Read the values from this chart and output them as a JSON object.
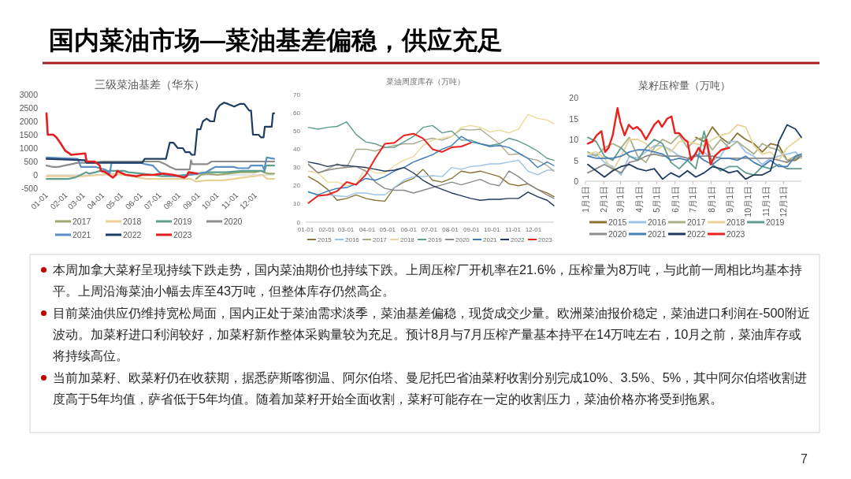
{
  "chart_data": [
    {
      "type": "other",
      "title": "国内菜油市场—菜油基差偏稳，供应充足",
      "annotations": [
        "7"
      ]
    },
    {
      "type": "line",
      "title": "三级菜油基差（华东）",
      "legend": "bottom",
      "xlim": [
        "--01-01",
        "--12-31"
      ],
      "xticks": [
        {
          "value": "--01-01",
          "label": "01-01"
        },
        {
          "value": "--02-01",
          "label": "02-01"
        },
        {
          "value": "--03-01",
          "label": "03-01"
        },
        {
          "value": "--04-01",
          "label": "04-01"
        },
        {
          "value": "--05-01",
          "label": "05-01"
        },
        {
          "value": "--06-01",
          "label": "06-01"
        },
        {
          "value": "--07-01",
          "label": "07-01"
        },
        {
          "value": "--08-01",
          "label": "08-01"
        },
        {
          "value": "--09-01",
          "label": "09-01"
        },
        {
          "value": "--10-01",
          "label": "10-01"
        },
        {
          "value": "--11-01",
          "label": "11-01"
        },
        {
          "value": "--12-01",
          "label": "12-01"
        }
      ],
      "ylim": [
        -500,
        3000
      ],
      "yticks": [
        -500,
        0,
        500,
        1000,
        1500,
        2000,
        2500,
        3000
      ],
      "series": [
        {
          "name": "2017",
          "color": "#9aaa6c",
          "x": [
            "--08-28",
            "--09-05",
            "--09-15",
            "--10-01",
            "--10-18",
            "--11-06",
            "--11-30",
            "--12-10",
            "--12-20",
            "--12-31"
          ],
          "values": [
            -150,
            0,
            50,
            0,
            50,
            100,
            100,
            150,
            50,
            50
          ]
        },
        {
          "name": "2018",
          "color": "#e8cf96",
          "x": [
            "--01-01",
            "--03-01",
            "--03-28",
            "--04-08",
            "--05-08",
            "--05-28",
            "--06-10",
            "--08-20",
            "--08-28",
            "--09-15",
            "--10-10",
            "--10-28",
            "--11-10",
            "--11-30",
            "--12-12",
            "--12-20",
            "--12-31"
          ],
          "values": [
            -50,
            -50,
            0,
            50,
            0,
            -100,
            -150,
            -150,
            -250,
            -200,
            -200,
            -150,
            -100,
            -50,
            0,
            -150,
            -150
          ]
        },
        {
          "name": "2019",
          "color": "#5f9f8e",
          "x": [
            "--01-01",
            "--02-05",
            "--02-15",
            "--02-25",
            "--03-05",
            "--03-10",
            "--03-20",
            "--03-28",
            "--05-05",
            "--05-12",
            "--06-03",
            "--06-20",
            "--07-05",
            "--07-25",
            "--08-10",
            "--08-30",
            "--09-15",
            "--10-15",
            "--11-10",
            "--12-12",
            "--12-15",
            "--12-18",
            "--12-31"
          ],
          "values": [
            -150,
            -150,
            -100,
            0,
            100,
            50,
            100,
            150,
            150,
            100,
            50,
            0,
            -50,
            -50,
            0,
            50,
            100,
            100,
            150,
            150,
            100,
            350,
            350
          ]
        },
        {
          "name": "2020",
          "color": "#8c8c8c",
          "x": [
            "--01-01",
            "--01-10",
            "--01-20",
            "--01-30",
            "--02-10",
            "--02-20",
            "--03-15",
            "--04-01",
            "--06-30",
            "--07-10",
            "--07-17",
            "--07-27",
            "--08-18",
            "--08-20",
            "--08-22",
            "--09-15",
            "--09-22",
            "--12-31"
          ],
          "values": [
            350,
            300,
            300,
            350,
            400,
            450,
            450,
            500,
            500,
            400,
            300,
            200,
            200,
            550,
            400,
            400,
            500,
            500
          ]
        },
        {
          "name": "2021",
          "color": "#5b8fc6",
          "x": [
            "--01-01",
            "--02-20",
            "--02-25",
            "--03-20",
            "--03-27",
            "--04-05",
            "--04-12",
            "--04-15",
            "--06-01",
            "--06-08",
            "--06-20",
            "--06-30",
            "--07-10",
            "--08-01",
            "--08-18",
            "--08-31",
            "--09-13",
            "--09-20",
            "--09-28",
            "--10-27",
            "--11-03",
            "--11-20",
            "--11-24",
            "--12-12",
            "--12-15",
            "--12-19",
            "--12-31"
          ],
          "values": [
            650,
            600,
            300,
            300,
            250,
            200,
            50,
            450,
            450,
            400,
            350,
            100,
            0,
            -50,
            0,
            50,
            100,
            200,
            300,
            300,
            250,
            250,
            350,
            350,
            200,
            650,
            600
          ]
        },
        {
          "name": "2022",
          "color": "#1f3d62",
          "x": [
            "--01-01",
            "--03-03",
            "--03-06",
            "--06-03",
            "--06-07",
            "--07-11",
            "--07-17",
            "--07-23",
            "--07-30",
            "--08-07",
            "--08-11",
            "--08-18",
            "--08-21",
            "--08-26",
            "--08-30",
            "--09-04",
            "--09-08",
            "--09-14",
            "--09-20",
            "--09-26",
            "--09-29",
            "--10-05",
            "--10-12",
            "--10-18",
            "--10-28",
            "--11-06",
            "--11-13",
            "--11-21",
            "--11-24",
            "--11-27",
            "--12-06",
            "--12-10",
            "--12-14",
            "--12-16",
            "--12-27",
            "--12-29",
            "--12-31"
          ],
          "values": [
            600,
            550,
            450,
            450,
            600,
            600,
            1200,
            1200,
            1000,
            1000,
            850,
            850,
            750,
            750,
            1700,
            1700,
            2000,
            2100,
            2000,
            2000,
            2400,
            2600,
            2700,
            2650,
            2550,
            2650,
            2650,
            2400,
            2400,
            1500,
            1500,
            1400,
            1400,
            1800,
            1800,
            2300,
            2300
          ]
        },
        {
          "name": "2023",
          "color": "#e3201f",
          "x": [
            "--01-01",
            "--01-03",
            "--01-12",
            "--01-17",
            "--01-23",
            "--01-31",
            "--02-07",
            "--02-09",
            "--03-04",
            "--03-06",
            "--03-19",
            "--03-27",
            "--03-29",
            "--04-05",
            "--04-11",
            "--04-17",
            "--04-22",
            "--04-24",
            "--04-28",
            "--05-08",
            "--05-25",
            "--06-03",
            "--06-20",
            "--07-07",
            "--07-23",
            "--08-01",
            "--08-09",
            "--08-13",
            "--08-16",
            "--08-30"
          ],
          "values": [
            2300,
            1500,
            1500,
            1400,
            1200,
            900,
            800,
            750,
            800,
            500,
            500,
            350,
            150,
            100,
            0,
            -100,
            0,
            150,
            100,
            0,
            -50,
            0,
            0,
            50,
            0,
            -50,
            -100,
            -50,
            100,
            50
          ]
        }
      ]
    },
    {
      "type": "line",
      "title": "菜油周度库存（万吨）",
      "legend": "bottom",
      "xlim": [
        "--01-01",
        "--12-31"
      ],
      "xticks": [
        {
          "value": "--01-01",
          "label": "01-01"
        },
        {
          "value": "--02-01",
          "label": "02-01"
        },
        {
          "value": "--03-01",
          "label": "03-01"
        },
        {
          "value": "--04-01",
          "label": "04-01"
        },
        {
          "value": "--05-01",
          "label": "05-01"
        },
        {
          "value": "--06-01",
          "label": "06-01"
        },
        {
          "value": "--07-01",
          "label": "07-01"
        },
        {
          "value": "--08-01",
          "label": "08-01"
        },
        {
          "value": "--09-01",
          "label": "09-01"
        },
        {
          "value": "--10-01",
          "label": "10-01"
        },
        {
          "value": "--11-01",
          "label": "11-01"
        },
        {
          "value": "--12-01",
          "label": "12-01"
        }
      ],
      "ylim": [
        0,
        70
      ],
      "yticks": [
        0,
        10,
        20,
        30,
        40,
        50,
        60,
        70
      ],
      "x": [
        "--01-05",
        "--01-19",
        "--02-02",
        "--02-16",
        "--03-02",
        "--03-16",
        "--03-30",
        "--04-13",
        "--04-27",
        "--05-11",
        "--05-25",
        "--06-08",
        "--06-22",
        "--07-06",
        "--07-20",
        "--08-03",
        "--08-17",
        "--08-31",
        "--09-14",
        "--09-28",
        "--10-12",
        "--10-26",
        "--11-09",
        "--11-23",
        "--12-07",
        "--12-21",
        "--12-31"
      ],
      "series": [
        {
          "name": "2015",
          "color": "#8b7334",
          "values": [
            25,
            22,
            18,
            12,
            13,
            15,
            13,
            12,
            11.5,
            19,
            22,
            24,
            29,
            23,
            22,
            24,
            28,
            27,
            28,
            26.5,
            25,
            21,
            20,
            21,
            18,
            16,
            14
          ]
        },
        {
          "name": "2016",
          "color": "#9dc3e6",
          "values": [
            17,
            14.5,
            15,
            14.5,
            14,
            16,
            16,
            15,
            15,
            19,
            23,
            25,
            25,
            25.5,
            25,
            30,
            29,
            30.5,
            31,
            32,
            32,
            33,
            34,
            28,
            26,
            28.5,
            28.5
          ]
        },
        {
          "name": "2017",
          "color": "#a9aa8c",
          "values": [
            32,
            27,
            29,
            32,
            30,
            40,
            40,
            39,
            41,
            42,
            43,
            43,
            45,
            46,
            45,
            47,
            51,
            50.5,
            51,
            47,
            43,
            37,
            37.5,
            35,
            34,
            31,
            28
          ]
        },
        {
          "name": "2018",
          "color": "#ecd99a",
          "values": [
            28,
            27,
            22,
            22,
            20,
            21,
            30,
            27,
            27,
            31,
            34,
            36,
            42,
            45,
            46,
            47,
            52,
            53,
            52,
            49.5,
            50.5,
            49,
            51,
            59,
            57,
            56,
            54
          ]
        },
        {
          "name": "2019",
          "color": "#5e9c8f",
          "values": [
            52,
            51,
            52,
            52.5,
            55,
            48,
            44,
            43,
            41,
            41,
            44,
            47,
            52,
            53,
            49,
            50,
            45,
            45,
            43,
            42,
            43,
            46,
            44.5,
            42,
            39,
            35,
            34
          ]
        },
        {
          "name": "2020",
          "color": "#8a8a8a",
          "values": [
            31.5,
            27,
            28.5,
            29.5,
            30,
            30.5,
            28,
            22,
            18.5,
            17.5,
            17.5,
            16,
            17.5,
            19,
            20.5,
            22,
            20.5,
            22,
            23.5,
            21,
            20,
            28,
            25,
            21,
            18,
            15,
            13
          ]
        },
        {
          "name": "2021",
          "color": "#3a7ab8",
          "values": [
            16.5,
            15,
            17,
            18.5,
            19,
            21,
            24,
            23,
            25,
            28,
            30,
            33,
            35,
            37,
            40,
            42,
            47,
            44,
            43,
            41.5,
            42,
            41,
            38,
            35,
            30,
            33,
            31
          ]
        },
        {
          "name": "2022",
          "color": "#22385c",
          "values": [
            33,
            32,
            30.5,
            31.5,
            31,
            30.5,
            30,
            29,
            28,
            28.5,
            30,
            27,
            23,
            20,
            18,
            16,
            14.5,
            13,
            12,
            12.5,
            12.5,
            13,
            13,
            16.5,
            14,
            12,
            9
          ]
        },
        {
          "name": "2023",
          "color": "#e8231f",
          "values": [
            10.5,
            14.5,
            15,
            17,
            22,
            20.5,
            26,
            35,
            43,
            43.5,
            47.5,
            48.5,
            46,
            40,
            38.5,
            41,
            41.5,
            43.5,
            null,
            null,
            null,
            null,
            null,
            null,
            null,
            null,
            null
          ]
        }
      ]
    },
    {
      "type": "line",
      "title": "菜籽压榨量（万吨）",
      "legend": "bottom",
      "xlim": [
        "--01-01",
        "--12-31"
      ],
      "xticks": [
        {
          "value": "--01-01",
          "label": "1月1日"
        },
        {
          "value": "--02-01",
          "label": "2月1日"
        },
        {
          "value": "--03-01",
          "label": "3月1日"
        },
        {
          "value": "--04-01",
          "label": "4月1日"
        },
        {
          "value": "--05-01",
          "label": "5月1日"
        },
        {
          "value": "--06-01",
          "label": "6月1日"
        },
        {
          "value": "--07-01",
          "label": "7月1日"
        },
        {
          "value": "--08-01",
          "label": "8月1日"
        },
        {
          "value": "--09-01",
          "label": "9月1日"
        },
        {
          "value": "--10-01",
          "label": "10月1日"
        },
        {
          "value": "--11-01",
          "label": "11月1日"
        },
        {
          "value": "--12-01",
          "label": "12月1日"
        }
      ],
      "ylim": [
        0,
        20
      ],
      "yticks": [
        0,
        5,
        10,
        15,
        20
      ],
      "x": [
        "--01-05",
        "--01-19",
        "--02-02",
        "--02-16",
        "--03-02",
        "--03-16",
        "--03-30",
        "--04-13",
        "--04-27",
        "--05-11",
        "--05-25",
        "--06-08",
        "--06-22",
        "--07-06",
        "--07-20",
        "--08-03",
        "--08-17",
        "--08-31",
        "--09-14",
        "--09-28",
        "--10-12",
        "--10-26",
        "--11-09",
        "--11-23",
        "--12-07",
        "--12-21",
        "--12-31"
      ],
      "series": [
        {
          "name": "2015",
          "color": "#8b7332",
          "values": [
            null,
            null,
            null,
            null,
            null,
            null,
            null,
            null,
            null,
            null,
            null,
            null,
            null,
            10.5,
            9.5,
            13,
            10.5,
            9,
            11.5,
            10,
            9,
            7,
            9,
            8.5,
            5,
            5,
            6
          ]
        },
        {
          "name": "2016",
          "color": "#9dc3e6",
          "values": [
            6,
            6.5,
            4.5,
            3.5,
            1.5,
            6,
            5.5,
            7,
            8.5,
            8.5,
            7.5,
            6,
            5.5,
            6,
            7,
            5,
            6,
            9.5,
            9.5,
            7,
            6,
            4,
            5.5,
            6,
            6.5,
            7,
            5.5
          ]
        },
        {
          "name": "2017",
          "color": "#a9b08a",
          "values": [
            7,
            6,
            8,
            9,
            8,
            10.5,
            6,
            4.5,
            8,
            10,
            9,
            11,
            8,
            10,
            10.5,
            7.5,
            10,
            8,
            9.5,
            8,
            6.5,
            9,
            8,
            7.5,
            5,
            6,
            6
          ]
        },
        {
          "name": "2018",
          "color": "#e8d49a",
          "values": [
            6.5,
            7,
            5.5,
            2.5,
            6,
            10,
            10,
            9,
            7,
            8.5,
            7,
            9.5,
            9.5,
            9,
            8.5,
            10,
            11,
            11.5,
            13.5,
            13,
            8.5,
            6.5,
            7,
            5,
            8,
            9.5,
            10.5
          ]
        },
        {
          "name": "2019",
          "color": "#5e9c8f",
          "values": [
            10.5,
            9.5,
            6,
            5,
            8,
            6,
            5,
            8,
            10,
            9,
            4.5,
            3,
            5,
            3,
            12,
            4,
            2.5,
            3.5,
            3.5,
            2,
            1.5,
            3.5,
            3,
            4,
            3,
            3,
            3
          ]
        },
        {
          "name": "2020",
          "color": "#8c8c8c",
          "values": [
            2,
            3,
            4,
            3,
            2,
            4.5,
            5,
            6,
            6.5,
            6,
            6,
            6,
            5.5,
            6,
            6,
            6,
            5.5,
            5.5,
            5.5,
            5.5,
            5.5,
            5.5,
            5.5,
            5,
            4.5,
            5.5,
            6
          ]
        },
        {
          "name": "2021",
          "color": "#4a7fb5",
          "values": [
            6,
            5.5,
            5.5,
            5.5,
            6,
            7,
            7.5,
            7.5,
            7,
            6.5,
            5,
            5.5,
            5,
            6.5,
            5,
            4,
            5.5,
            5.5,
            5,
            6,
            4.5,
            3.5,
            5,
            3.5,
            3.5,
            6,
            6.5
          ]
        },
        {
          "name": "2022",
          "color": "#1f3a5f",
          "values": [
            4,
            2.5,
            1,
            2.5,
            3.5,
            4,
            3,
            2.5,
            3,
            0.5,
            2,
            1,
            2.5,
            1,
            2,
            3.5,
            3,
            2,
            2.5,
            0.5,
            1.5,
            1.5,
            2.5,
            9.5,
            13.5,
            12.5,
            10.5
          ]
        },
        {
          "name": "2023",
          "color": "#e8231f",
          "x": [
            "--01-05",
            "--01-13",
            "--01-20",
            "--01-28",
            "--02-03",
            "--02-09",
            "--02-16",
            "--02-24",
            "--03-01",
            "--03-08",
            "--03-15",
            "--03-22",
            "--03-29",
            "--04-05",
            "--04-13",
            "--04-19",
            "--04-27",
            "--05-04",
            "--05-10",
            "--05-19",
            "--05-26",
            "--06-01",
            "--06-08",
            "--06-17",
            "--06-22",
            "--06-28",
            "--07-05",
            "--07-11",
            "--07-18",
            "--07-24",
            "--07-31",
            "--08-07",
            "--08-18",
            "--08-31"
          ],
          "values": [
            9,
            9.5,
            11,
            12,
            7,
            8,
            11,
            17.5,
            14,
            11,
            13.5,
            12.5,
            13,
            12,
            10,
            11.5,
            13.5,
            14.5,
            13,
            15,
            15.5,
            11.5,
            11.5,
            10,
            9.5,
            5,
            6.5,
            8,
            6.5,
            10,
            4,
            6,
            7.5,
            8
          ]
        }
      ]
    },
    {
      "type": "other",
      "annotations": [
        "本周加拿大菜籽呈现持续下跌走势，国内菜油期价也持续下跌。上周压榨厂开机率在21.6%，压榨量为8万吨，与此前一周相比均基本持平。上周沿海菜油小幅去库至43万吨，但整体库存仍然高企。",
        "目前菜油供应仍维持宽松局面，国内正处于菜油需求淡季，菜油基差偏稳，现货成交少量。欧洲菜油报价稳定，菜油进口利润在-500附近波动。加菜籽进口利润较好，加菜籽新作整体采购量较为充足。预计8月与7月压榨产量基本持平在14万吨左右，10月之前，菜油库存或将持续高位。",
        "当前加菜籽、欧菜籽仍在收获期，据悉萨斯喀彻温、阿尔伯塔、曼尼托巴省油菜籽收割分别完成10%、3.5%、5%，其中阿尔伯塔收割进度高于5年均值，萨省低于5年均值。随着加菜籽开始全面收割，菜籽可能存在一定的收割压力，菜油价格亦将受到拖累。"
      ]
    }
  ]
}
